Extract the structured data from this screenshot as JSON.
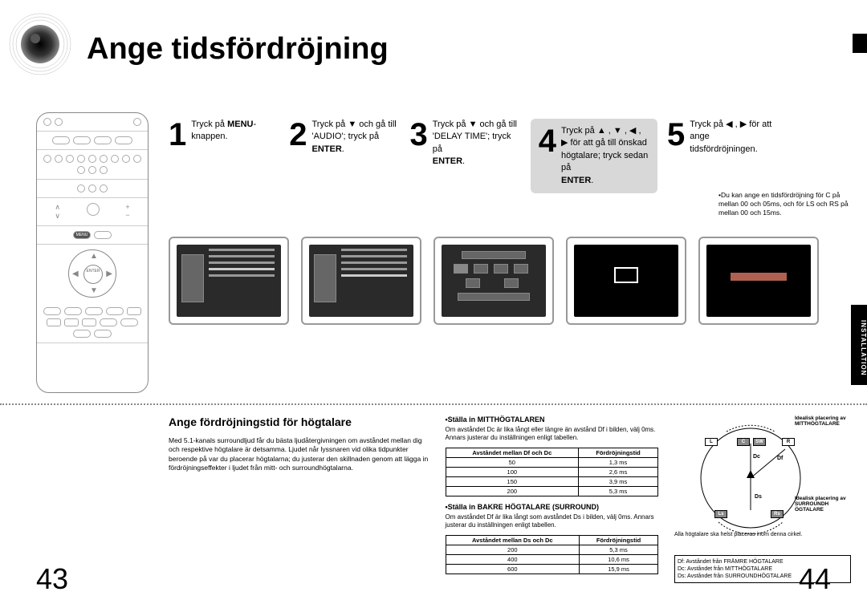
{
  "title": "Ange tidsfördröjning",
  "side_tab": "INSTALLATION",
  "steps": [
    {
      "num": "1",
      "text_parts": [
        "Tryck på ",
        "MENU",
        "-knappen."
      ]
    },
    {
      "num": "2",
      "text_parts": [
        "Tryck på ▼ och gå till 'AUDIO'; tryck på ",
        "ENTER",
        "."
      ]
    },
    {
      "num": "3",
      "text_parts": [
        "Tryck på ▼ och gå till 'DELAY TIME'; tryck på ",
        "ENTER",
        "."
      ]
    },
    {
      "num": "4",
      "gray": true,
      "text_parts": [
        "Tryck på ▲ , ▼ , ◀ , ▶ för att gå till önskad högtalare; tryck sedan på ",
        "ENTER",
        "."
      ]
    },
    {
      "num": "5",
      "text_parts": [
        "Tryck på ◀ , ▶ för att ange tidsfördröjningen."
      ]
    }
  ],
  "note": "•Du kan ange en tidsfördröjning för C på mellan 00 och 05ms, och för LS och RS på mellan 00 och 15ms.",
  "subsection_title": "Ange fördröjningstid för högtalare",
  "body_text": "Med 5.1-kanals surroundljud får du bästa ljudåtergivningen om avståndet mellan dig och respektive högtalare är detsamma. Ljudet når lyssnaren vid olika tidpunkter beroende på var du placerar högtalarna; du justerar den skillnaden genom att lägga in fördröjningseffekter i ljudet från mitt- och surroundhögtalarna.",
  "center_heading": "•Ställa in MITTHÖGTALAREN",
  "center_text": "Om avståndet Dc är lika långt eller längre än avstånd Df i bilden, välj 0ms. Annars justerar du inställningen enligt tabellen.",
  "rear_heading": "•Ställa in BAKRE HÖGTALARE (SURROUND)",
  "rear_text": "Om avståndet Df är lika långt som avståndet Ds i bilden, välj 0ms. Annars justerar du inställningen enligt tabellen.",
  "table_center": {
    "headers": [
      "Avståndet mellan Df och Dc",
      "Fördröjningstid"
    ],
    "rows": [
      [
        "50",
        "1,3 ms"
      ],
      [
        "100",
        "2,6 ms"
      ],
      [
        "150",
        "3,9 ms"
      ],
      [
        "200",
        "5,3 ms"
      ]
    ]
  },
  "table_rear": {
    "headers": [
      "Avståndet mellan Ds och Dc",
      "Fördröjningstid"
    ],
    "rows": [
      [
        "200",
        "5,3 ms"
      ],
      [
        "400",
        "10,6 ms"
      ],
      [
        "600",
        "15,9 ms"
      ]
    ]
  },
  "diagram": {
    "ideal_center": "Idealisk placering av MITTHÖGTALARE",
    "ideal_surround": "Idealisk placering av SURROUNDH ÖGTALARE",
    "circle_note": "Alla högtalare ska helst placeras inom denna cirkel.",
    "legend": [
      "Df: Avståndet från FRÄMRE HÖGTALARE",
      "Dc: Avståndet från MITTHÖGTALARE",
      "Ds: Avståndet från SURROUNDHÖGTALARE"
    ],
    "labels": {
      "L": "L",
      "C": "C",
      "SW": "SW",
      "R": "R",
      "Ls": "Ls",
      "Rs": "Rs",
      "Dc": "Dc",
      "Df": "Df",
      "Ds": "Ds"
    }
  },
  "page_left": "43",
  "page_right": "44",
  "colors": {
    "gray_box": "#d8d8d8",
    "tv_bg": "#2a2a2a",
    "border": "#999999"
  }
}
